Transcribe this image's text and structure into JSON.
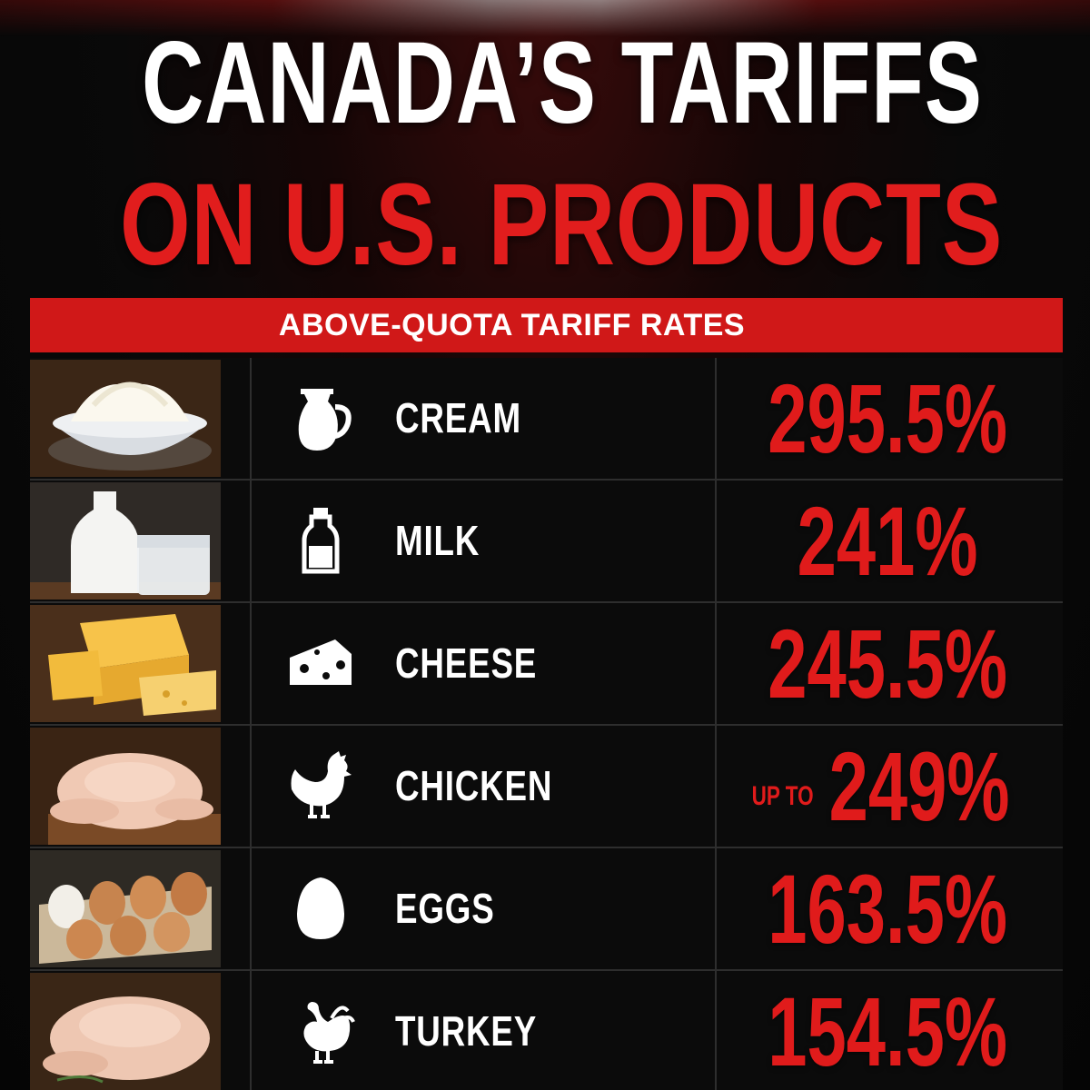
{
  "title": {
    "line1": "CANADA’S TARIFFS",
    "line2": "ON U.S. PRODUCTS"
  },
  "banner": "ABOVE-QUOTA TARIFF RATES",
  "colors": {
    "accent_red": "#e01b1b",
    "banner_red": "#d01818",
    "background": "#090909",
    "text": "#ffffff"
  },
  "items": [
    {
      "label": "CREAM",
      "rate": "295.5%",
      "prefix": "",
      "icon": "cream-pitcher-icon"
    },
    {
      "label": "MILK",
      "rate": "241%",
      "prefix": "",
      "icon": "milk-bottle-icon"
    },
    {
      "label": "CHEESE",
      "rate": "245.5%",
      "prefix": "",
      "icon": "cheese-icon"
    },
    {
      "label": "CHICKEN",
      "rate": "249%",
      "prefix": "UP TO",
      "icon": "chicken-icon"
    },
    {
      "label": "EGGS",
      "rate": "163.5%",
      "prefix": "",
      "icon": "egg-icon"
    },
    {
      "label": "TURKEY",
      "rate": "154.5%",
      "prefix": "",
      "icon": "turkey-icon"
    }
  ]
}
